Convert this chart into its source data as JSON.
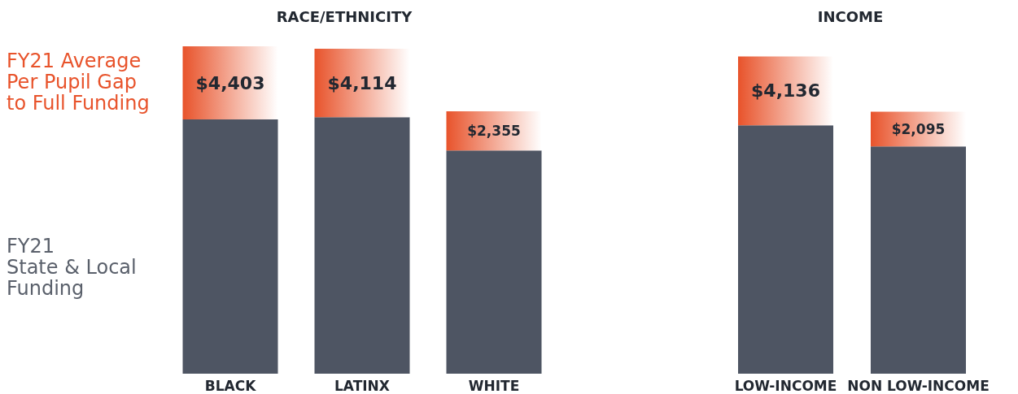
{
  "chart_data": [
    {
      "type": "bar",
      "title": "RACE/ETHNICITY",
      "categories": [
        "BLACK",
        "LATINX",
        "WHITE"
      ],
      "stacked": true,
      "tick_labels": "x",
      "legend": "left",
      "series": [
        {
          "name": "FY21\nState & Local\nFunding",
          "color": "#4e5563",
          "values": [
            15290,
            15430,
            13430
          ]
        },
        {
          "name": "FY21 Average\nPer Pupil Gap\nto Full Funding",
          "color": "#e8532b",
          "values": [
            4403,
            4114,
            2355
          ],
          "value_labels": [
            "$4,403",
            "$4,114",
            "$2,355"
          ]
        }
      ]
    },
    {
      "type": "bar",
      "title": "INCOME",
      "categories": [
        "LOW-INCOME",
        "NON LOW-INCOME"
      ],
      "stacked": true,
      "tick_labels": "x",
      "series": [
        {
          "color": "#4e5563",
          "values": [
            14945,
            13670
          ]
        },
        {
          "color": "#e8532b",
          "values": [
            4136,
            2095
          ],
          "value_labels": [
            "$4,136",
            "$2,095"
          ]
        }
      ]
    }
  ]
}
